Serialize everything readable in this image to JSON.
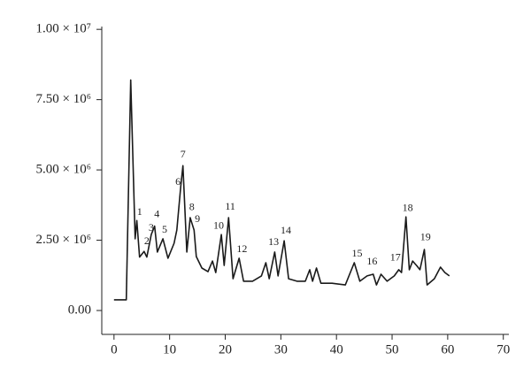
{
  "chart_data": {
    "type": "line",
    "series": [
      {
        "color": "#1a1a1a",
        "x": [
          0,
          2.2,
          3.0,
          3.8,
          4.1,
          4.6,
          5.4,
          5.9,
          6.7,
          7.3,
          7.8,
          8.8,
          9.7,
          10.8,
          11.3,
          12.0,
          12.4,
          13.1,
          13.7,
          14.4,
          14.8,
          15.8,
          16.9,
          17.7,
          18.3,
          19.3,
          19.8,
          20.6,
          21.4,
          22.5,
          23.3,
          24.9,
          26.5,
          27.3,
          27.9,
          28.9,
          29.5,
          30.6,
          31.4,
          32.9,
          34.4,
          35.2,
          35.7,
          36.4,
          37.2,
          39.2,
          41.6,
          43.2,
          44.2,
          45.5,
          46.6,
          47.2,
          48.0,
          49.1,
          50.4,
          51.2,
          51.7,
          52.5,
          53.1,
          53.7,
          54.4,
          55.0,
          55.8,
          56.3,
          57.6,
          58.7,
          59.5,
          60.3
        ],
        "values": [
          380000,
          380000,
          8200000,
          2550000,
          3200000,
          1900000,
          2100000,
          1900000,
          2700000,
          3000000,
          2080000,
          2550000,
          1860000,
          2390000,
          2860000,
          4400000,
          5150000,
          2080000,
          3300000,
          2860000,
          1920000,
          1510000,
          1380000,
          1760000,
          1350000,
          2700000,
          1600000,
          3300000,
          1130000,
          1860000,
          1040000,
          1040000,
          1230000,
          1700000,
          1130000,
          2080000,
          1230000,
          2480000,
          1130000,
          1040000,
          1040000,
          1450000,
          1040000,
          1510000,
          970000,
          970000,
          910000,
          1700000,
          1040000,
          1230000,
          1290000,
          910000,
          1290000,
          1040000,
          1230000,
          1450000,
          1350000,
          3330000,
          1450000,
          1760000,
          1600000,
          1450000,
          2170000,
          910000,
          1130000,
          1540000,
          1350000,
          1230000
        ]
      }
    ],
    "annotations": [
      {
        "text": "1",
        "x": 4.6,
        "y": 3490000
      },
      {
        "text": "2",
        "x": 5.9,
        "y": 2450000
      },
      {
        "text": "3",
        "x": 6.7,
        "y": 2920000
      },
      {
        "text": "4",
        "x": 7.7,
        "y": 3400000
      },
      {
        "text": "5",
        "x": 9.1,
        "y": 2860000
      },
      {
        "text": "6",
        "x": 11.5,
        "y": 4560000
      },
      {
        "text": "7",
        "x": 12.4,
        "y": 5530000
      },
      {
        "text": "8",
        "x": 14.0,
        "y": 3650000
      },
      {
        "text": "9",
        "x": 15.0,
        "y": 3240000
      },
      {
        "text": "10",
        "x": 18.8,
        "y": 2990000
      },
      {
        "text": "11",
        "x": 20.9,
        "y": 3680000
      },
      {
        "text": "12",
        "x": 23.0,
        "y": 2170000
      },
      {
        "text": "13",
        "x": 28.7,
        "y": 2420000
      },
      {
        "text": "14",
        "x": 30.9,
        "y": 2830000
      },
      {
        "text": "15",
        "x": 43.7,
        "y": 2010000
      },
      {
        "text": "16",
        "x": 46.4,
        "y": 1730000
      },
      {
        "text": "17",
        "x": 50.6,
        "y": 1860000
      },
      {
        "text": "18",
        "x": 52.8,
        "y": 3620000
      },
      {
        "text": "19",
        "x": 56.0,
        "y": 2580000
      }
    ],
    "xlim": [
      -2.2,
      71
    ],
    "xticks": [
      0,
      10,
      20,
      30,
      40,
      50,
      60,
      70
    ],
    "ylim": [
      -850000,
      10100000
    ],
    "yticks": [
      {
        "value": 0,
        "label": "0.00"
      },
      {
        "value": 2500000,
        "label": "2.50 × 10⁶"
      },
      {
        "value": 5000000,
        "label": "5.00 × 10⁶"
      },
      {
        "value": 7500000,
        "label": "7.50 × 10⁶"
      },
      {
        "value": 10000000,
        "label": "1.00 × 10⁷"
      }
    ]
  }
}
